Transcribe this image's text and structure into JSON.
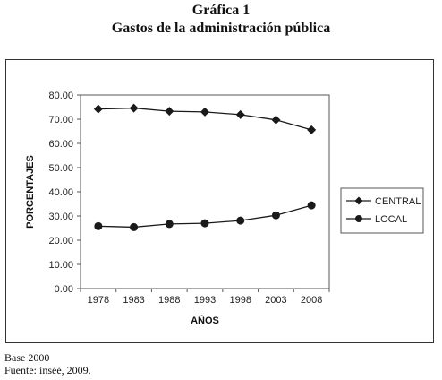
{
  "title": "Gráfica 1",
  "subtitle": "Gastos de la administración pública",
  "chart_data": {
    "type": "line",
    "categories": [
      "1978",
      "1983",
      "1988",
      "1993",
      "1998",
      "2003",
      "2008"
    ],
    "series": [
      {
        "name": "CENTRAL",
        "marker": "diamond",
        "color": "#1a1a1a",
        "values": [
          74.2,
          74.6,
          73.3,
          73.0,
          71.9,
          69.7,
          65.6
        ]
      },
      {
        "name": "LOCAL",
        "marker": "circle",
        "color": "#1a1a1a",
        "values": [
          25.8,
          25.4,
          26.7,
          27.0,
          28.1,
          30.3,
          34.4
        ]
      }
    ],
    "xlabel": "AÑOS",
    "ylabel": "PORCENTAJES",
    "ylim": [
      0,
      80
    ],
    "yticks": [
      "0.00",
      "10.00",
      "20.00",
      "30.00",
      "40.00",
      "50.00",
      "60.00",
      "70.00",
      "80.00"
    ],
    "grid": false,
    "legend": "right"
  },
  "notes": {
    "base": "Base 2000",
    "source": "Fuente: inséé, 2009."
  }
}
